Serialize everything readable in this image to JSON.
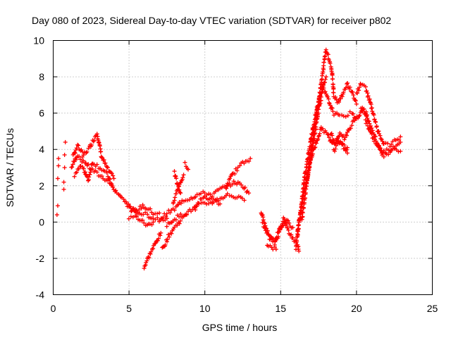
{
  "chart_data": {
    "type": "scatter",
    "title": "Day 080 of 2023, Sidereal Day-to-day VTEC variation (SDTVAR) for receiver p802",
    "xlabel": "GPS time / hours",
    "ylabel": "SDTVAR / TECUs",
    "xlim": [
      0,
      25
    ],
    "ylim": [
      -4,
      10
    ],
    "x_ticks": [
      "0",
      "5",
      "10",
      "15",
      "20",
      "25"
    ],
    "y_ticks": [
      "-4",
      "-2",
      "0",
      "2",
      "4",
      "6",
      "8",
      "10"
    ],
    "grid": true,
    "marker": "+",
    "color": "#ff0000",
    "series": [
      {
        "name": "",
        "points": [
          [
            0.25,
            0.4
          ],
          [
            0.3,
            0.9
          ],
          [
            0.3,
            2.4
          ],
          [
            0.35,
            3.1
          ],
          [
            0.35,
            3.5
          ],
          [
            0.7,
            1.8
          ],
          [
            0.7,
            2.2
          ],
          [
            0.75,
            3.0
          ],
          [
            0.75,
            3.7
          ],
          [
            0.8,
            4.4
          ]
        ]
      },
      {
        "name": "",
        "segments": [
          [
            [
              1.2,
              3.0
            ],
            [
              1.6,
              3.7
            ],
            [
              2.0,
              3.4
            ],
            [
              2.4,
              3.0
            ],
            [
              2.7,
              2.8
            ],
            [
              3.0,
              2.6
            ],
            [
              3.4,
              2.4
            ],
            [
              3.8,
              2.1
            ],
            [
              4.2,
              1.6
            ]
          ],
          [
            [
              1.3,
              3.6
            ],
            [
              1.6,
              4.2
            ],
            [
              2.0,
              3.7
            ],
            [
              2.4,
              4.1
            ],
            [
              2.7,
              4.6
            ],
            [
              2.9,
              4.9
            ],
            [
              3.2,
              3.6
            ],
            [
              3.6,
              2.9
            ],
            [
              4.0,
              2.4
            ]
          ],
          [
            [
              1.4,
              2.6
            ],
            [
              1.9,
              3.2
            ],
            [
              2.3,
              2.3
            ],
            [
              2.6,
              3.3
            ],
            [
              3.1,
              3.0
            ],
            [
              3.5,
              2.7
            ],
            [
              3.9,
              2.0
            ]
          ],
          [
            [
              4.3,
              1.5
            ],
            [
              4.8,
              1.1
            ],
            [
              5.2,
              0.7
            ],
            [
              5.7,
              0.5
            ],
            [
              6.2,
              0.4
            ],
            [
              6.6,
              0.2
            ],
            [
              7.0,
              0.2
            ],
            [
              7.5,
              0.2
            ]
          ],
          [
            [
              4.9,
              0.9
            ],
            [
              5.4,
              0.5
            ],
            [
              5.9,
              0.9
            ],
            [
              6.3,
              0.7
            ],
            [
              6.6,
              0.5
            ],
            [
              7.0,
              0.5
            ]
          ],
          [
            [
              5.0,
              0.2
            ],
            [
              5.4,
              0.3
            ],
            [
              5.8,
              0.1
            ],
            [
              6.2,
              -0.2
            ],
            [
              6.6,
              0.0
            ]
          ],
          [
            [
              6.0,
              -2.5
            ],
            [
              6.4,
              -1.7
            ],
            [
              6.8,
              -1.1
            ],
            [
              7.1,
              -0.6
            ]
          ],
          [
            [
              7.2,
              -1.5
            ],
            [
              7.6,
              -0.8
            ],
            [
              8.0,
              -0.3
            ],
            [
              8.4,
              0.1
            ],
            [
              8.8,
              0.4
            ]
          ],
          [
            [
              7.0,
              0.1
            ],
            [
              7.5,
              0.5
            ],
            [
              8.0,
              0.7
            ],
            [
              8.5,
              1.2
            ],
            [
              9.0,
              1.3
            ],
            [
              9.5,
              1.5
            ],
            [
              10.0,
              1.6
            ],
            [
              10.5,
              1.5
            ],
            [
              11.0,
              1.8
            ],
            [
              11.5,
              2.0
            ],
            [
              12.0,
              2.2
            ],
            [
              12.5,
              2.0
            ],
            [
              12.9,
              1.6
            ]
          ],
          [
            [
              7.5,
              -0.2
            ],
            [
              8.0,
              0.2
            ],
            [
              8.5,
              0.4
            ],
            [
              9.0,
              0.6
            ],
            [
              9.5,
              0.9
            ],
            [
              10.0,
              1.0
            ],
            [
              10.5,
              1.1
            ],
            [
              11.0,
              1.3
            ],
            [
              11.5,
              1.5
            ],
            [
              12.0,
              1.4
            ],
            [
              12.6,
              1.2
            ]
          ],
          [
            [
              7.9,
              1.1
            ],
            [
              8.2,
              1.8
            ],
            [
              8.6,
              2.6
            ]
          ],
          [
            [
              8.0,
              2.7
            ],
            [
              8.2,
              2.0
            ],
            [
              8.4,
              1.6
            ]
          ],
          [
            [
              8.7,
              3.2
            ],
            [
              8.9,
              2.9
            ]
          ],
          [
            [
              9.3,
              0.7
            ],
            [
              9.6,
              1.1
            ],
            [
              10.0,
              1.4
            ],
            [
              10.5,
              1.2
            ],
            [
              11.0,
              1.0
            ]
          ],
          [
            [
              11.4,
              1.9
            ],
            [
              11.8,
              2.6
            ],
            [
              12.2,
              3.0
            ],
            [
              12.6,
              3.3
            ],
            [
              13.0,
              3.5
            ]
          ],
          [
            [
              13.7,
              0.6
            ],
            [
              14.0,
              -0.3
            ],
            [
              14.3,
              -1.0
            ],
            [
              14.6,
              -1.2
            ],
            [
              14.9,
              -0.6
            ],
            [
              15.2,
              0.2
            ],
            [
              15.5,
              -0.5
            ],
            [
              15.8,
              -0.9
            ],
            [
              16.1,
              -1.2
            ],
            [
              16.2,
              -1.6
            ]
          ],
          [
            [
              13.8,
              -0.1
            ],
            [
              14.2,
              -0.6
            ],
            [
              14.6,
              -1.0
            ],
            [
              15.0,
              -0.3
            ],
            [
              15.4,
              0.1
            ],
            [
              15.8,
              -0.3
            ]
          ],
          [
            [
              14.1,
              -1.2
            ],
            [
              14.4,
              -1.4
            ],
            [
              14.7,
              -1.5
            ]
          ],
          [
            [
              16.0,
              -1.4
            ],
            [
              16.3,
              0.5
            ],
            [
              16.6,
              2.6
            ],
            [
              17.0,
              4.6
            ],
            [
              17.4,
              6.3
            ],
            [
              17.8,
              7.6
            ],
            [
              18.0,
              8.0
            ]
          ],
          [
            [
              16.1,
              -0.5
            ],
            [
              16.5,
              1.4
            ],
            [
              16.9,
              3.2
            ],
            [
              17.3,
              4.3
            ],
            [
              17.7,
              5.2
            ],
            [
              18.1,
              4.8
            ],
            [
              18.4,
              4.3
            ],
            [
              18.7,
              4.6
            ],
            [
              19.0,
              4.4
            ],
            [
              19.4,
              4.1
            ]
          ],
          [
            [
              16.4,
              0.2
            ],
            [
              16.8,
              2.6
            ],
            [
              17.2,
              4.6
            ],
            [
              17.5,
              6.2
            ],
            [
              17.8,
              7.4
            ],
            [
              18.1,
              6.8
            ],
            [
              18.5,
              6.0
            ],
            [
              18.9,
              5.8
            ],
            [
              19.3,
              5.9
            ],
            [
              19.7,
              6.0
            ],
            [
              20.0,
              5.7
            ]
          ],
          [
            [
              16.7,
              2.0
            ],
            [
              17.0,
              4.0
            ],
            [
              17.3,
              5.6
            ],
            [
              17.6,
              7.2
            ],
            [
              17.9,
              9.0
            ],
            [
              18.0,
              9.5
            ],
            [
              18.2,
              9.0
            ],
            [
              18.4,
              8.2
            ],
            [
              18.5,
              7.0
            ],
            [
              18.8,
              6.6
            ],
            [
              19.1,
              7.1
            ],
            [
              19.4,
              7.6
            ],
            [
              19.7,
              7.2
            ],
            [
              20.0,
              6.5
            ]
          ],
          [
            [
              18.3,
              4.9
            ],
            [
              18.6,
              4.3
            ],
            [
              18.9,
              4.9
            ],
            [
              19.2,
              4.6
            ],
            [
              19.5,
              5.1
            ],
            [
              19.8,
              5.5
            ],
            [
              20.1,
              5.8
            ],
            [
              20.4,
              6.2
            ],
            [
              20.7,
              5.9
            ]
          ],
          [
            [
              18.5,
              3.9
            ],
            [
              18.8,
              4.5
            ],
            [
              19.1,
              4.2
            ],
            [
              19.4,
              3.8
            ]
          ],
          [
            [
              20.0,
              7.1
            ],
            [
              20.3,
              7.6
            ],
            [
              20.6,
              7.4
            ],
            [
              20.9,
              6.6
            ],
            [
              21.2,
              5.6
            ],
            [
              21.5,
              4.8
            ],
            [
              21.8,
              4.3
            ],
            [
              22.2,
              4.2
            ],
            [
              22.6,
              4.5
            ],
            [
              22.9,
              4.7
            ]
          ],
          [
            [
              20.3,
              6.3
            ],
            [
              20.6,
              6.0
            ],
            [
              20.9,
              5.3
            ],
            [
              21.2,
              4.7
            ],
            [
              21.5,
              4.1
            ],
            [
              21.8,
              3.6
            ],
            [
              22.2,
              3.9
            ],
            [
              22.6,
              4.2
            ],
            [
              22.9,
              4.4
            ]
          ],
          [
            [
              20.6,
              5.6
            ],
            [
              21.0,
              4.8
            ],
            [
              21.4,
              4.2
            ],
            [
              21.7,
              3.8
            ],
            [
              22.0,
              4.0
            ],
            [
              22.4,
              4.0
            ],
            [
              22.9,
              3.9
            ]
          ]
        ]
      }
    ]
  }
}
